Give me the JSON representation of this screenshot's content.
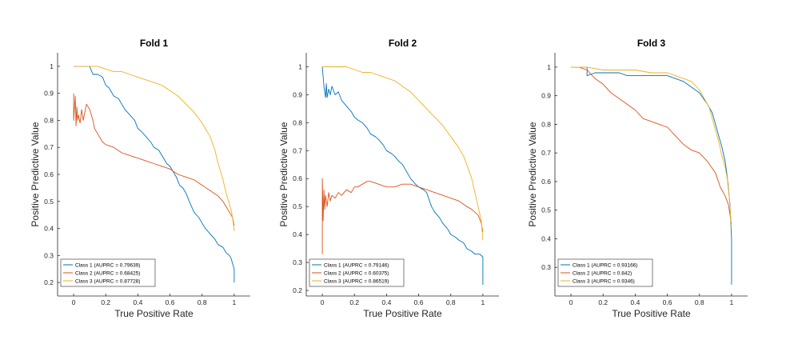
{
  "chart_data": [
    {
      "type": "line",
      "title": "Fold 1",
      "xlabel": "True Positive Rate",
      "ylabel": "Positive Predictive Value",
      "xlim": [
        -0.1,
        1.1
      ],
      "ylim": [
        0.15,
        1.05
      ],
      "xticks": [
        "0",
        "0.2",
        "0.4",
        "0.6",
        "0.8",
        "1"
      ],
      "yticks": [
        "0.2",
        "0.3",
        "0.4",
        "0.5",
        "0.6",
        "0.7",
        "0.8",
        "0.9",
        "1"
      ],
      "legend_position": "bottom-left",
      "series": [
        {
          "name": "Class 1 (AUPRC = 0.79639)",
          "color": "#0072BD",
          "x": [
            0,
            0.0,
            0.02,
            0.06,
            0.1,
            0.12,
            0.15,
            0.18,
            0.2,
            0.22,
            0.25,
            0.28,
            0.3,
            0.32,
            0.35,
            0.38,
            0.4,
            0.42,
            0.45,
            0.48,
            0.5,
            0.53,
            0.55,
            0.58,
            0.6,
            0.62,
            0.64,
            0.66,
            0.68,
            0.7,
            0.72,
            0.75,
            0.78,
            0.8,
            0.82,
            0.85,
            0.88,
            0.9,
            0.93,
            0.95,
            0.97,
            0.98,
            0.99,
            1.0,
            1.0
          ],
          "y": [
            1.0,
            1.0,
            1.0,
            1.0,
            1.0,
            0.97,
            0.97,
            0.96,
            0.93,
            0.92,
            0.89,
            0.88,
            0.86,
            0.84,
            0.82,
            0.8,
            0.77,
            0.76,
            0.74,
            0.72,
            0.7,
            0.69,
            0.67,
            0.64,
            0.63,
            0.61,
            0.59,
            0.56,
            0.55,
            0.53,
            0.5,
            0.46,
            0.44,
            0.42,
            0.4,
            0.38,
            0.36,
            0.34,
            0.33,
            0.31,
            0.3,
            0.29,
            0.27,
            0.25,
            0.2
          ]
        },
        {
          "name": "Class 2 (AUPRC = 0.68425)",
          "color": "#D95319",
          "x": [
            0,
            0.0,
            0.01,
            0.015,
            0.02,
            0.025,
            0.03,
            0.04,
            0.05,
            0.06,
            0.08,
            0.1,
            0.12,
            0.13,
            0.15,
            0.18,
            0.2,
            0.25,
            0.3,
            0.35,
            0.4,
            0.45,
            0.5,
            0.55,
            0.6,
            0.65,
            0.7,
            0.75,
            0.8,
            0.85,
            0.9,
            0.93,
            0.95,
            0.97,
            0.99,
            1.0
          ],
          "y": [
            0.9,
            0.8,
            0.89,
            0.78,
            0.85,
            0.8,
            0.82,
            0.79,
            0.84,
            0.8,
            0.86,
            0.84,
            0.8,
            0.77,
            0.75,
            0.72,
            0.71,
            0.7,
            0.68,
            0.67,
            0.66,
            0.65,
            0.64,
            0.63,
            0.62,
            0.6,
            0.59,
            0.58,
            0.56,
            0.54,
            0.52,
            0.5,
            0.48,
            0.46,
            0.44,
            0.41
          ]
        },
        {
          "name": "Class 3 (AUPRC = 0.87728)",
          "color": "#EDB120",
          "x": [
            0,
            0.05,
            0.1,
            0.15,
            0.2,
            0.25,
            0.3,
            0.35,
            0.4,
            0.45,
            0.5,
            0.55,
            0.6,
            0.65,
            0.7,
            0.75,
            0.8,
            0.85,
            0.88,
            0.9,
            0.93,
            0.95,
            0.97,
            0.98,
            0.99,
            1.0
          ],
          "y": [
            1.0,
            1.0,
            1.0,
            1.0,
            0.99,
            0.98,
            0.98,
            0.97,
            0.96,
            0.95,
            0.94,
            0.93,
            0.91,
            0.89,
            0.86,
            0.83,
            0.79,
            0.74,
            0.69,
            0.64,
            0.58,
            0.53,
            0.49,
            0.47,
            0.44,
            0.39
          ]
        }
      ]
    },
    {
      "type": "line",
      "title": "Fold 2",
      "xlabel": "True Positive Rate",
      "ylabel": "Positive Predictive Value",
      "xlim": [
        -0.1,
        1.1
      ],
      "ylim": [
        0.18,
        1.05
      ],
      "xticks": [
        "0",
        "0.2",
        "0.4",
        "0.6",
        "0.8",
        "1"
      ],
      "yticks": [
        "0.2",
        "0.3",
        "0.4",
        "0.5",
        "0.6",
        "0.7",
        "0.8",
        "0.9",
        "1"
      ],
      "legend_position": "bottom-left",
      "series": [
        {
          "name": "Class 1 (AUPRC = 0.79146)",
          "color": "#0072BD",
          "x": [
            0,
            0.0,
            0.01,
            0.02,
            0.025,
            0.03,
            0.04,
            0.05,
            0.06,
            0.08,
            0.1,
            0.12,
            0.15,
            0.18,
            0.2,
            0.22,
            0.25,
            0.28,
            0.3,
            0.33,
            0.35,
            0.38,
            0.4,
            0.43,
            0.45,
            0.48,
            0.5,
            0.53,
            0.55,
            0.58,
            0.6,
            0.63,
            0.65,
            0.68,
            0.7,
            0.73,
            0.75,
            0.78,
            0.8,
            0.83,
            0.85,
            0.88,
            0.9,
            0.93,
            0.95,
            0.98,
            1.0,
            1.0
          ],
          "y": [
            1.0,
            1.0,
            0.93,
            0.89,
            0.94,
            0.89,
            0.92,
            0.9,
            0.93,
            0.9,
            0.91,
            0.88,
            0.86,
            0.84,
            0.82,
            0.81,
            0.8,
            0.78,
            0.76,
            0.75,
            0.74,
            0.72,
            0.7,
            0.69,
            0.68,
            0.66,
            0.65,
            0.62,
            0.6,
            0.58,
            0.57,
            0.56,
            0.55,
            0.5,
            0.48,
            0.46,
            0.44,
            0.42,
            0.4,
            0.39,
            0.38,
            0.37,
            0.35,
            0.34,
            0.33,
            0.33,
            0.32,
            0.22
          ]
        },
        {
          "name": "Class 2 (AUPRC = 0.60375)",
          "color": "#D95319",
          "x": [
            0,
            0.0,
            0.005,
            0.01,
            0.015,
            0.02,
            0.03,
            0.04,
            0.05,
            0.06,
            0.08,
            0.1,
            0.12,
            0.15,
            0.18,
            0.2,
            0.22,
            0.25,
            0.28,
            0.3,
            0.35,
            0.4,
            0.45,
            0.5,
            0.55,
            0.6,
            0.65,
            0.7,
            0.75,
            0.8,
            0.85,
            0.9,
            0.93,
            0.95,
            0.97,
            0.99,
            1.0
          ],
          "y": [
            0.33,
            0.6,
            0.45,
            0.56,
            0.49,
            0.54,
            0.5,
            0.55,
            0.52,
            0.54,
            0.53,
            0.55,
            0.54,
            0.56,
            0.55,
            0.57,
            0.57,
            0.58,
            0.59,
            0.59,
            0.58,
            0.57,
            0.57,
            0.58,
            0.58,
            0.57,
            0.56,
            0.55,
            0.54,
            0.53,
            0.52,
            0.5,
            0.49,
            0.48,
            0.47,
            0.44,
            0.41
          ]
        },
        {
          "name": "Class 3 (AUPRC = 0.86519)",
          "color": "#EDB120",
          "x": [
            0,
            0.05,
            0.1,
            0.15,
            0.2,
            0.25,
            0.3,
            0.35,
            0.4,
            0.45,
            0.5,
            0.55,
            0.6,
            0.65,
            0.7,
            0.75,
            0.8,
            0.85,
            0.88,
            0.9,
            0.93,
            0.95,
            0.97,
            0.99,
            1.0
          ],
          "y": [
            1.0,
            1.0,
            1.0,
            1.0,
            0.99,
            0.98,
            0.98,
            0.97,
            0.96,
            0.95,
            0.93,
            0.91,
            0.88,
            0.85,
            0.82,
            0.79,
            0.75,
            0.71,
            0.68,
            0.65,
            0.6,
            0.55,
            0.5,
            0.45,
            0.38
          ]
        }
      ]
    },
    {
      "type": "line",
      "title": "Fold 3",
      "xlabel": "True Positive Rate",
      "ylabel": "Positive Predictive Value",
      "xlim": [
        -0.1,
        1.1
      ],
      "ylim": [
        0.2,
        1.05
      ],
      "xticks": [
        "0",
        "0.2",
        "0.4",
        "0.6",
        "0.8",
        "1"
      ],
      "yticks": [
        "0.3",
        "0.4",
        "0.5",
        "0.6",
        "0.7",
        "0.8",
        "0.9",
        "1"
      ],
      "legend_position": "bottom-left",
      "series": [
        {
          "name": "Class 1 (AUPRC = 0.93166)",
          "color": "#0072BD",
          "x": [
            0,
            0.05,
            0.1,
            0.1,
            0.15,
            0.2,
            0.25,
            0.3,
            0.35,
            0.4,
            0.45,
            0.5,
            0.55,
            0.6,
            0.65,
            0.7,
            0.75,
            0.8,
            0.85,
            0.88,
            0.9,
            0.92,
            0.94,
            0.96,
            0.97,
            0.98,
            0.99,
            1.0,
            1.0
          ],
          "y": [
            1.0,
            1.0,
            1.0,
            0.97,
            0.98,
            0.98,
            0.98,
            0.98,
            0.97,
            0.97,
            0.97,
            0.97,
            0.97,
            0.97,
            0.96,
            0.95,
            0.93,
            0.91,
            0.87,
            0.84,
            0.8,
            0.76,
            0.72,
            0.67,
            0.63,
            0.58,
            0.52,
            0.4,
            0.24
          ]
        },
        {
          "name": "Class 2 (AUPRC = 0.842)",
          "color": "#D95319",
          "x": [
            0,
            0.05,
            0.1,
            0.15,
            0.2,
            0.25,
            0.3,
            0.35,
            0.4,
            0.45,
            0.5,
            0.55,
            0.6,
            0.65,
            0.7,
            0.75,
            0.8,
            0.85,
            0.9,
            0.93,
            0.96,
            0.98,
            1.0
          ],
          "y": [
            1.0,
            1.0,
            0.99,
            0.96,
            0.94,
            0.91,
            0.89,
            0.87,
            0.85,
            0.82,
            0.81,
            0.8,
            0.79,
            0.76,
            0.73,
            0.71,
            0.7,
            0.67,
            0.63,
            0.58,
            0.55,
            0.52,
            0.45
          ]
        },
        {
          "name": "Class 3 (AUPRC = 0.9346)",
          "color": "#EDB120",
          "x": [
            0,
            0.1,
            0.2,
            0.3,
            0.4,
            0.5,
            0.55,
            0.6,
            0.65,
            0.7,
            0.75,
            0.8,
            0.83,
            0.86,
            0.88,
            0.9,
            0.92,
            0.94,
            0.96,
            0.98,
            1.0
          ],
          "y": [
            1.0,
            1.0,
            0.99,
            0.99,
            0.99,
            0.98,
            0.98,
            0.98,
            0.97,
            0.96,
            0.95,
            0.92,
            0.89,
            0.86,
            0.82,
            0.78,
            0.74,
            0.69,
            0.65,
            0.59,
            0.43
          ]
        }
      ]
    }
  ]
}
